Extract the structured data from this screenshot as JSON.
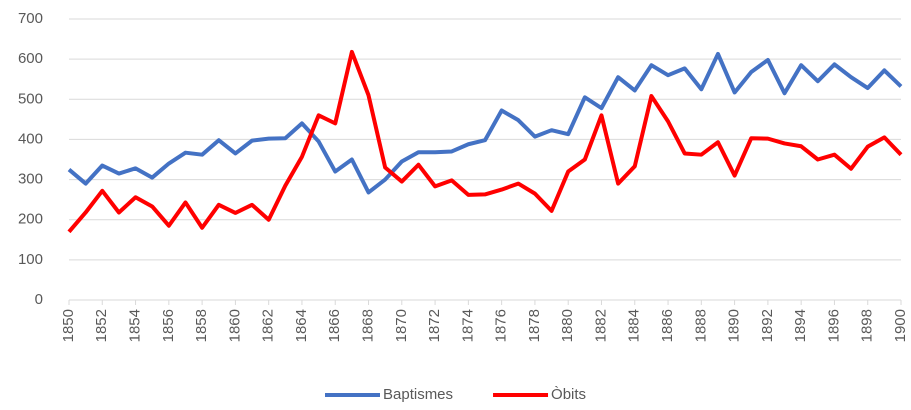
{
  "chart_data": {
    "type": "line",
    "x": [
      1850,
      1851,
      1852,
      1853,
      1854,
      1855,
      1856,
      1857,
      1858,
      1859,
      1860,
      1861,
      1862,
      1863,
      1864,
      1865,
      1866,
      1867,
      1868,
      1869,
      1870,
      1871,
      1872,
      1873,
      1874,
      1875,
      1876,
      1877,
      1878,
      1879,
      1880,
      1881,
      1882,
      1883,
      1884,
      1885,
      1886,
      1887,
      1888,
      1889,
      1890,
      1891,
      1892,
      1893,
      1894,
      1895,
      1896,
      1897,
      1898,
      1899,
      1900
    ],
    "series": [
      {
        "name": "Baptismes",
        "color": "#4472c4",
        "values": [
          325,
          290,
          335,
          315,
          328,
          305,
          340,
          367,
          362,
          398,
          365,
          397,
          402,
          403,
          440,
          395,
          320,
          350,
          268,
          300,
          345,
          368,
          368,
          370,
          388,
          398,
          472,
          448,
          407,
          423,
          413,
          505,
          478,
          555,
          522,
          585,
          560,
          577,
          525,
          613,
          517,
          568,
          598,
          515,
          585,
          545,
          587,
          555,
          528,
          572,
          532
        ]
      },
      {
        "name": "Òbits",
        "color": "#ff0000",
        "values": [
          170,
          218,
          272,
          218,
          256,
          233,
          185,
          243,
          180,
          237,
          217,
          237,
          200,
          285,
          357,
          460,
          440,
          618,
          510,
          330,
          295,
          337,
          283,
          298,
          262,
          263,
          275,
          290,
          265,
          222,
          320,
          350,
          460,
          290,
          333,
          508,
          445,
          365,
          362,
          393,
          310,
          403,
          402,
          390,
          383,
          350,
          362,
          327,
          382,
          405,
          362
        ]
      }
    ],
    "xlim": [
      1850,
      1900
    ],
    "xticks": [
      1850,
      1852,
      1854,
      1856,
      1858,
      1860,
      1862,
      1864,
      1866,
      1868,
      1870,
      1872,
      1874,
      1876,
      1878,
      1880,
      1882,
      1884,
      1886,
      1888,
      1890,
      1892,
      1894,
      1896,
      1898,
      1900
    ],
    "ylim": [
      0,
      700
    ],
    "yticks": [
      0,
      100,
      200,
      300,
      400,
      500,
      600,
      700
    ],
    "grid": true,
    "legend": "bottom"
  }
}
